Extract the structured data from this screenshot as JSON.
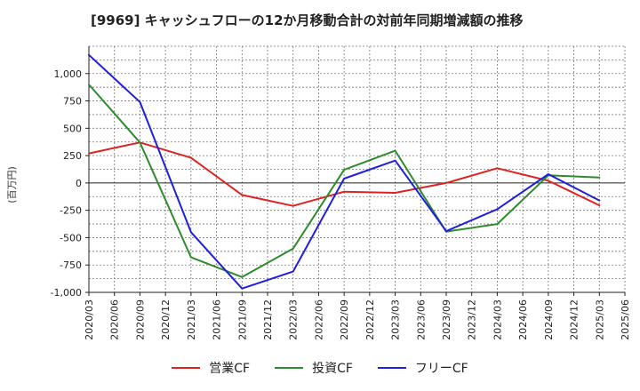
{
  "chart_data": {
    "type": "line",
    "title": "[9969]  キャッシュフローの12か月移動合計の対前年同期増減額の推移",
    "ylabel": "(百万円)",
    "xlabel": "",
    "ylim": [
      -1000,
      1250
    ],
    "yticks": [
      -1000,
      -750,
      -500,
      -250,
      0,
      250,
      500,
      750,
      1000
    ],
    "ytick_labels": [
      "-1,000",
      "-750",
      "-500",
      "-250",
      "0",
      "250",
      "500",
      "750",
      "1,000"
    ],
    "x_tick_labels": [
      "2020/03",
      "2020/06",
      "2020/09",
      "2020/12",
      "2021/03",
      "2021/06",
      "2021/09",
      "2021/12",
      "2022/03",
      "2022/06",
      "2022/09",
      "2022/12",
      "2023/03",
      "2023/06",
      "2023/09",
      "2023/12",
      "2024/03",
      "2024/06",
      "2024/09",
      "2024/12",
      "2025/03",
      "2025/06"
    ],
    "grid": true,
    "legend_position": "bottom",
    "series": [
      {
        "name": "営業CF",
        "color": "#dd2222",
        "x": [
          "2020/03",
          "2020/09",
          "2021/03",
          "2021/09",
          "2022/03",
          "2022/09",
          "2023/03",
          "2023/09",
          "2024/03",
          "2024/09",
          "2025/03"
        ],
        "values": [
          270,
          370,
          230,
          -110,
          -210,
          -80,
          -90,
          0,
          135,
          20,
          -205
        ]
      },
      {
        "name": "投資CF",
        "color": "#2e8b2e",
        "x": [
          "2020/03",
          "2020/09",
          "2021/03",
          "2021/09",
          "2022/03",
          "2022/09",
          "2023/03",
          "2023/09",
          "2024/03",
          "2024/09",
          "2025/03"
        ],
        "values": [
          900,
          370,
          -680,
          -860,
          -600,
          120,
          295,
          -445,
          -375,
          70,
          50
        ]
      },
      {
        "name": "フリーCF",
        "color": "#1f1fdd",
        "x": [
          "2020/03",
          "2020/09",
          "2021/03",
          "2021/09",
          "2022/03",
          "2022/09",
          "2023/03",
          "2023/09",
          "2024/03",
          "2024/09",
          "2025/03"
        ],
        "values": [
          1170,
          740,
          -450,
          -965,
          -810,
          40,
          205,
          -440,
          -240,
          80,
          -160
        ]
      }
    ]
  }
}
